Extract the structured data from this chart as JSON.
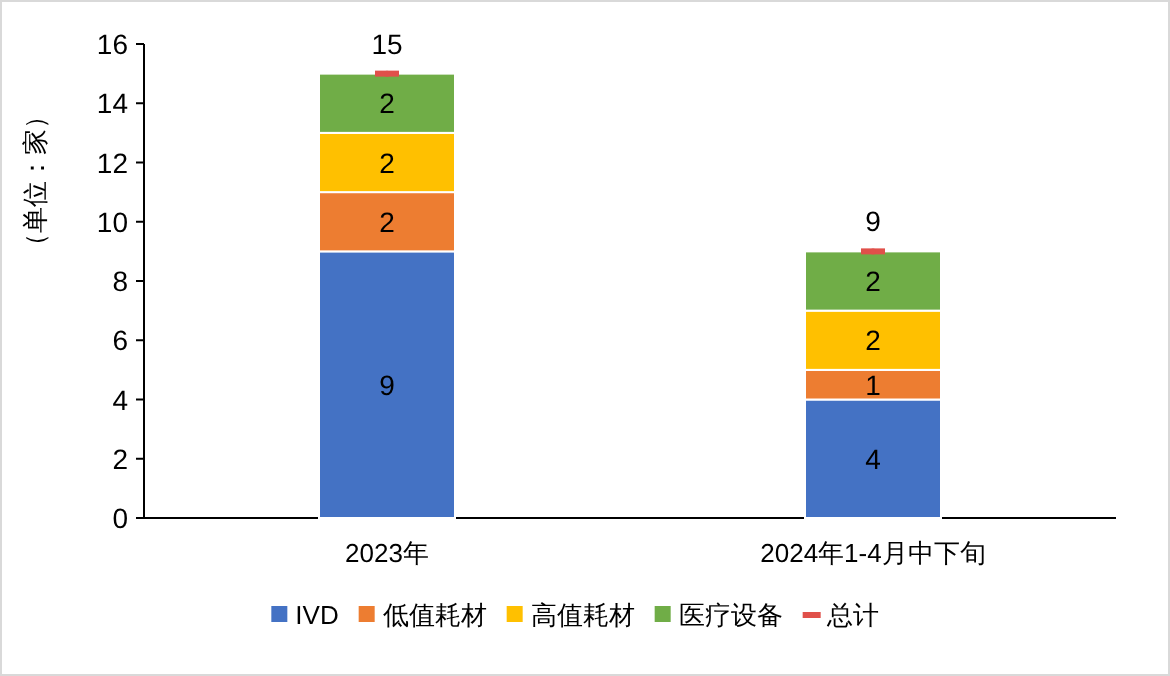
{
  "chart_data": {
    "type": "bar",
    "stacked": true,
    "ylabel": "（单位：家）",
    "categories": [
      "2023年",
      "2024年1-4月中下旬"
    ],
    "series": [
      {
        "name": "IVD",
        "color": "#4472c4",
        "values": [
          9,
          4
        ]
      },
      {
        "name": "低值耗材",
        "color": "#ed7d31",
        "values": [
          2,
          1
        ]
      },
      {
        "name": "高值耗材",
        "color": "#ffc000",
        "values": [
          2,
          2
        ]
      },
      {
        "name": "医疗设备",
        "color": "#70ad47",
        "values": [
          2,
          2
        ]
      },
      {
        "name": "总计",
        "type": "scatter",
        "color": "#e0504a",
        "values": [
          15,
          9
        ]
      }
    ],
    "ylim": [
      0,
      16
    ],
    "yticks": [
      0,
      2,
      4,
      6,
      8,
      10,
      12,
      14,
      16
    ],
    "data_labels": true,
    "legend": "bottom",
    "grid": false
  }
}
